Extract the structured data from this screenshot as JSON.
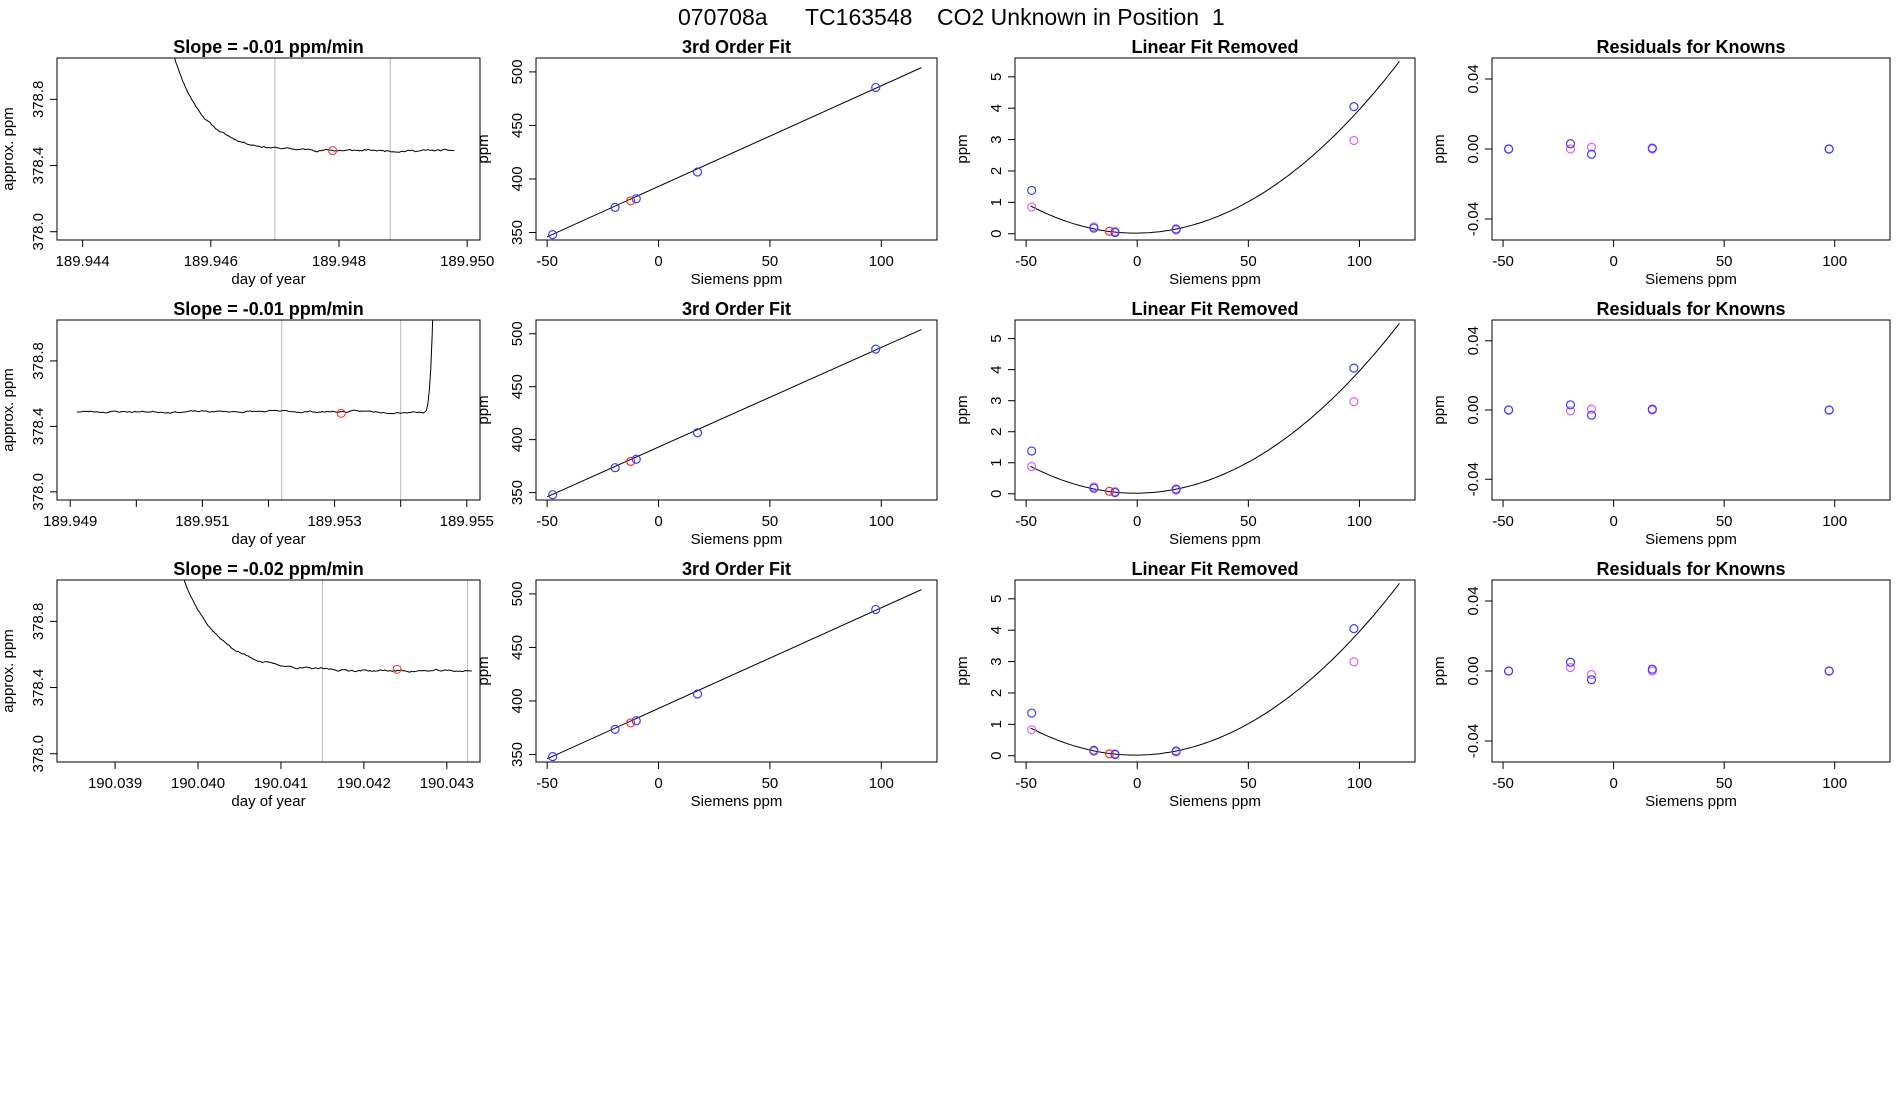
{
  "page_title": {
    "run_id": "070708a",
    "tank": "TC163548",
    "description": "CO2 Unknown in Position  1"
  },
  "colors": {
    "line": "#000000",
    "known_points": "#3b3bff",
    "unknown_point": "#ff2a2a",
    "linear_removed_points": "#e060ff",
    "frame": "#000000",
    "reference_lines": "#b8b8b8"
  },
  "chart_data": [
    {
      "panel": "row1-time-series",
      "type": "line",
      "title": "Slope =  -0.01  ppm/min",
      "xlabel": "day of year",
      "ylabel": "approx. ppm",
      "xlim": [
        189.9436,
        189.9502
      ],
      "ylim": [
        377.95,
        379.05
      ],
      "xticks": [
        "189.944",
        "189.946",
        "189.948",
        "189.950"
      ],
      "xtick_values": [
        189.944,
        189.946,
        189.948,
        189.95
      ],
      "yticks": [
        "378.0",
        "378.4",
        "378.8"
      ],
      "ytick_values": [
        378.0,
        378.4,
        378.8
      ],
      "ref_lines_x": [
        189.947,
        189.9488
      ],
      "trace": {
        "kind": "decay",
        "start_x": 189.9454,
        "end_x": 189.9498,
        "start_y": 379.1,
        "settle_y": 378.49,
        "tau": 0.00045,
        "noise": 0.008,
        "seed": 11
      },
      "marker": {
        "x": 189.9479,
        "y": 378.49
      }
    },
    {
      "panel": "row2-time-series",
      "type": "line",
      "title": "Slope =  -0.01  ppm/min",
      "xlabel": "day of year",
      "ylabel": "approx. ppm",
      "xlim": [
        189.9488,
        189.9552
      ],
      "ylim": [
        377.95,
        379.05
      ],
      "xticks": [
        "189.949",
        "189.951",
        "189.953",
        "189.955"
      ],
      "xtick_values": [
        189.949,
        189.951,
        189.953,
        189.955
      ],
      "minor_xtick_values": [
        189.95,
        189.952,
        189.954
      ],
      "yticks": [
        "378.0",
        "378.4",
        "378.8"
      ],
      "ytick_values": [
        378.0,
        378.4,
        378.8
      ],
      "ref_lines_x": [
        189.9522,
        189.954
      ],
      "trace": {
        "kind": "flat-rise",
        "start_x": 189.9491,
        "end_x": 189.9545,
        "level_y": 378.49,
        "rise_start_x": 189.95435,
        "noise": 0.008,
        "seed": 23
      },
      "marker": {
        "x": 189.9531,
        "y": 378.48
      }
    },
    {
      "panel": "row3-time-series",
      "type": "line",
      "title": "Slope =  -0.02  ppm/min",
      "xlabel": "day of year",
      "ylabel": "approx. ppm",
      "xlim": [
        190.0383,
        190.0434
      ],
      "ylim": [
        377.95,
        379.05
      ],
      "xticks": [
        "190.039",
        "190.040",
        "190.041",
        "190.042",
        "190.043"
      ],
      "xtick_values": [
        190.039,
        190.04,
        190.041,
        190.042,
        190.043
      ],
      "yticks": [
        "378.0",
        "378.4",
        "378.8"
      ],
      "ytick_values": [
        378.0,
        378.4,
        378.8
      ],
      "ref_lines_x": [
        190.0415,
        190.04325
      ],
      "trace": {
        "kind": "decay",
        "start_x": 190.0398,
        "end_x": 190.0433,
        "start_y": 379.1,
        "settle_y": 378.5,
        "tau": 0.00042,
        "noise": 0.008,
        "seed": 37
      },
      "marker": {
        "x": 190.0424,
        "y": 378.51
      }
    },
    {
      "panel": "row1-3rd-order-fit",
      "type": "scatter",
      "title": "3rd Order Fit",
      "xlabel": "Siemens ppm",
      "ylabel": "ppm",
      "xlim": [
        -55,
        125
      ],
      "ylim": [
        343,
        513
      ],
      "xticks": [
        "-50",
        "0",
        "50",
        "100"
      ],
      "xtick_values": [
        -50,
        0,
        50,
        100
      ],
      "yticks": [
        "350",
        "400",
        "450",
        "500"
      ],
      "ytick_values": [
        350,
        400,
        450,
        500
      ],
      "fit_line": {
        "x": [
          -50,
          118
        ],
        "y": [
          346,
          504
        ]
      },
      "points": {
        "known": [
          {
            "x": -47.5,
            "y": 348.0
          },
          {
            "x": -19.5,
            "y": 373.5
          },
          {
            "x": -10.0,
            "y": 381.5
          },
          {
            "x": 17.5,
            "y": 406.5
          },
          {
            "x": 97.5,
            "y": 485.5
          }
        ],
        "unknown": [
          {
            "x": -12.5,
            "y": 379.5
          }
        ]
      }
    },
    {
      "panel": "row2-3rd-order-fit",
      "type": "scatter",
      "title": "3rd Order Fit",
      "xlabel": "Siemens ppm",
      "ylabel": "ppm",
      "xlim": [
        -55,
        125
      ],
      "ylim": [
        343,
        513
      ],
      "xticks": [
        "-50",
        "0",
        "50",
        "100"
      ],
      "xtick_values": [
        -50,
        0,
        50,
        100
      ],
      "yticks": [
        "350",
        "400",
        "450",
        "500"
      ],
      "ytick_values": [
        350,
        400,
        450,
        500
      ],
      "fit_line": {
        "x": [
          -50,
          118
        ],
        "y": [
          346,
          504
        ]
      },
      "points": {
        "known": [
          {
            "x": -47.5,
            "y": 348.0
          },
          {
            "x": -19.5,
            "y": 373.5
          },
          {
            "x": -10.0,
            "y": 381.5
          },
          {
            "x": 17.5,
            "y": 406.5
          },
          {
            "x": 97.5,
            "y": 485.5
          }
        ],
        "unknown": [
          {
            "x": -12.5,
            "y": 379.5
          }
        ]
      }
    },
    {
      "panel": "row3-3rd-order-fit",
      "type": "scatter",
      "title": "3rd Order Fit",
      "xlabel": "Siemens ppm",
      "ylabel": "ppm",
      "xlim": [
        -55,
        125
      ],
      "ylim": [
        343,
        513
      ],
      "xticks": [
        "-50",
        "0",
        "50",
        "100"
      ],
      "xtick_values": [
        -50,
        0,
        50,
        100
      ],
      "yticks": [
        "350",
        "400",
        "450",
        "500"
      ],
      "ytick_values": [
        350,
        400,
        450,
        500
      ],
      "fit_line": {
        "x": [
          -50,
          118
        ],
        "y": [
          346,
          504
        ]
      },
      "points": {
        "known": [
          {
            "x": -47.5,
            "y": 348.0
          },
          {
            "x": -19.5,
            "y": 373.5
          },
          {
            "x": -10.0,
            "y": 381.5
          },
          {
            "x": 17.5,
            "y": 406.5
          },
          {
            "x": 97.5,
            "y": 485.5
          }
        ],
        "unknown": [
          {
            "x": -12.5,
            "y": 379.5
          }
        ]
      }
    },
    {
      "panel": "row1-linear-fit-removed",
      "type": "scatter",
      "title": "Linear Fit Removed",
      "xlabel": "Siemens ppm",
      "ylabel": "ppm",
      "xlim": [
        -55,
        125
      ],
      "ylim": [
        -0.2,
        5.6
      ],
      "xticks": [
        "-50",
        "0",
        "50",
        "100"
      ],
      "xtick_values": [
        -50,
        0,
        50,
        100
      ],
      "yticks": [
        "0",
        "1",
        "2",
        "3",
        "4",
        "5"
      ],
      "ytick_values": [
        0,
        1,
        2,
        3,
        4,
        5
      ],
      "curve": {
        "a": 0.000388,
        "b": 0.0006,
        "c": 0.02,
        "x_range": [
          -48,
          118
        ]
      },
      "points": {
        "known": [
          {
            "x": -47.5,
            "y": 1.38
          },
          {
            "x": -19.5,
            "y": 0.18
          },
          {
            "x": -10.0,
            "y": 0.04
          },
          {
            "x": 17.5,
            "y": 0.15
          },
          {
            "x": 97.5,
            "y": 4.05
          }
        ],
        "linear_removed": [
          {
            "x": -47.5,
            "y": 0.85
          },
          {
            "x": -19.5,
            "y": 0.22
          },
          {
            "x": -10.0,
            "y": 0.07
          },
          {
            "x": 17.5,
            "y": 0.12
          },
          {
            "x": 97.5,
            "y": 2.97
          }
        ],
        "unknown": [
          {
            "x": -12.5,
            "y": 0.08
          }
        ]
      }
    },
    {
      "panel": "row2-linear-fit-removed",
      "type": "scatter",
      "title": "Linear Fit Removed",
      "xlabel": "Siemens ppm",
      "ylabel": "ppm",
      "xlim": [
        -55,
        125
      ],
      "ylim": [
        -0.2,
        5.6
      ],
      "xticks": [
        "-50",
        "0",
        "50",
        "100"
      ],
      "xtick_values": [
        -50,
        0,
        50,
        100
      ],
      "yticks": [
        "0",
        "1",
        "2",
        "3",
        "4",
        "5"
      ],
      "ytick_values": [
        0,
        1,
        2,
        3,
        4,
        5
      ],
      "curve": {
        "a": 0.000388,
        "b": 0.0006,
        "c": 0.02,
        "x_range": [
          -48,
          118
        ]
      },
      "points": {
        "known": [
          {
            "x": -47.5,
            "y": 1.38
          },
          {
            "x": -19.5,
            "y": 0.18
          },
          {
            "x": -10.0,
            "y": 0.04
          },
          {
            "x": 17.5,
            "y": 0.15
          },
          {
            "x": 97.5,
            "y": 4.05
          }
        ],
        "linear_removed": [
          {
            "x": -47.5,
            "y": 0.88
          },
          {
            "x": -19.5,
            "y": 0.22
          },
          {
            "x": -10.0,
            "y": 0.07
          },
          {
            "x": 17.5,
            "y": 0.12
          },
          {
            "x": 97.5,
            "y": 2.97
          }
        ],
        "unknown": [
          {
            "x": -12.5,
            "y": 0.08
          }
        ]
      }
    },
    {
      "panel": "row3-linear-fit-removed",
      "type": "scatter",
      "title": "Linear Fit Removed",
      "xlabel": "Siemens ppm",
      "ylabel": "ppm",
      "xlim": [
        -55,
        125
      ],
      "ylim": [
        -0.2,
        5.6
      ],
      "xticks": [
        "-50",
        "0",
        "50",
        "100"
      ],
      "xtick_values": [
        -50,
        0,
        50,
        100
      ],
      "yticks": [
        "0",
        "1",
        "2",
        "3",
        "4",
        "5"
      ],
      "ytick_values": [
        0,
        1,
        2,
        3,
        4,
        5
      ],
      "curve": {
        "a": 0.000388,
        "b": 0.0006,
        "c": 0.02,
        "x_range": [
          -48,
          118
        ]
      },
      "points": {
        "known": [
          {
            "x": -47.5,
            "y": 1.36
          },
          {
            "x": -19.5,
            "y": 0.17
          },
          {
            "x": -10.0,
            "y": 0.04
          },
          {
            "x": 17.5,
            "y": 0.15
          },
          {
            "x": 97.5,
            "y": 4.05
          }
        ],
        "linear_removed": [
          {
            "x": -47.5,
            "y": 0.83
          },
          {
            "x": -19.5,
            "y": 0.14
          },
          {
            "x": -10.0,
            "y": 0.06
          },
          {
            "x": 17.5,
            "y": 0.12
          },
          {
            "x": 97.5,
            "y": 2.99
          }
        ],
        "unknown": [
          {
            "x": -12.5,
            "y": 0.06
          }
        ]
      }
    },
    {
      "panel": "row1-residuals",
      "type": "scatter",
      "title": "Residuals for Knowns",
      "xlabel": "Siemens ppm",
      "ylabel": "ppm",
      "xlim": [
        -55,
        125
      ],
      "ylim": [
        -0.052,
        0.052
      ],
      "xticks": [
        "-50",
        "0",
        "50",
        "100"
      ],
      "xtick_values": [
        -50,
        0,
        50,
        100
      ],
      "yticks": [
        "-0.04",
        "0.00",
        "0.04"
      ],
      "ytick_values": [
        -0.04,
        0.0,
        0.04
      ],
      "points": {
        "known": [
          {
            "x": -47.5,
            "y": 0.0
          },
          {
            "x": -19.5,
            "y": 0.003
          },
          {
            "x": -10.0,
            "y": -0.003
          },
          {
            "x": 17.5,
            "y": 0.0005
          },
          {
            "x": 97.5,
            "y": 0.0
          }
        ],
        "secondary": [
          {
            "x": -47.5,
            "y": 0.0
          },
          {
            "x": -19.5,
            "y": 0.0
          },
          {
            "x": -10.0,
            "y": 0.001
          },
          {
            "x": 17.5,
            "y": 0.0
          },
          {
            "x": 97.5,
            "y": 0.0
          }
        ]
      }
    },
    {
      "panel": "row2-residuals",
      "type": "scatter",
      "title": "Residuals for Knowns",
      "xlabel": "Siemens ppm",
      "ylabel": "ppm",
      "xlim": [
        -55,
        125
      ],
      "ylim": [
        -0.052,
        0.052
      ],
      "xticks": [
        "-50",
        "0",
        "50",
        "100"
      ],
      "xtick_values": [
        -50,
        0,
        50,
        100
      ],
      "yticks": [
        "-0.04",
        "0.00",
        "0.04"
      ],
      "ytick_values": [
        -0.04,
        0.0,
        0.04
      ],
      "points": {
        "known": [
          {
            "x": -47.5,
            "y": 0.0
          },
          {
            "x": -19.5,
            "y": 0.003
          },
          {
            "x": -10.0,
            "y": -0.003
          },
          {
            "x": 17.5,
            "y": 0.0005
          },
          {
            "x": 97.5,
            "y": 0.0
          }
        ],
        "secondary": [
          {
            "x": -47.5,
            "y": 0.0
          },
          {
            "x": -19.5,
            "y": -0.0005
          },
          {
            "x": -10.0,
            "y": 0.0005
          },
          {
            "x": 17.5,
            "y": 0.0
          },
          {
            "x": 97.5,
            "y": 0.0
          }
        ]
      }
    },
    {
      "panel": "row3-residuals",
      "type": "scatter",
      "title": "Residuals for Knowns",
      "xlabel": "Siemens ppm",
      "ylabel": "ppm",
      "xlim": [
        -55,
        125
      ],
      "ylim": [
        -0.052,
        0.052
      ],
      "xticks": [
        "-50",
        "0",
        "50",
        "100"
      ],
      "xtick_values": [
        -50,
        0,
        50,
        100
      ],
      "yticks": [
        "-0.04",
        "0.00",
        "0.04"
      ],
      "ytick_values": [
        -0.04,
        0.0,
        0.04
      ],
      "points": {
        "known": [
          {
            "x": -47.5,
            "y": 0.0
          },
          {
            "x": -19.5,
            "y": 0.005
          },
          {
            "x": -10.0,
            "y": -0.005
          },
          {
            "x": 17.5,
            "y": 0.001
          },
          {
            "x": 97.5,
            "y": 0.0
          }
        ],
        "secondary": [
          {
            "x": -47.5,
            "y": 0.0
          },
          {
            "x": -19.5,
            "y": 0.002
          },
          {
            "x": -10.0,
            "y": -0.002
          },
          {
            "x": 17.5,
            "y": 0.0
          },
          {
            "x": 97.5,
            "y": 0.0
          }
        ]
      }
    }
  ]
}
